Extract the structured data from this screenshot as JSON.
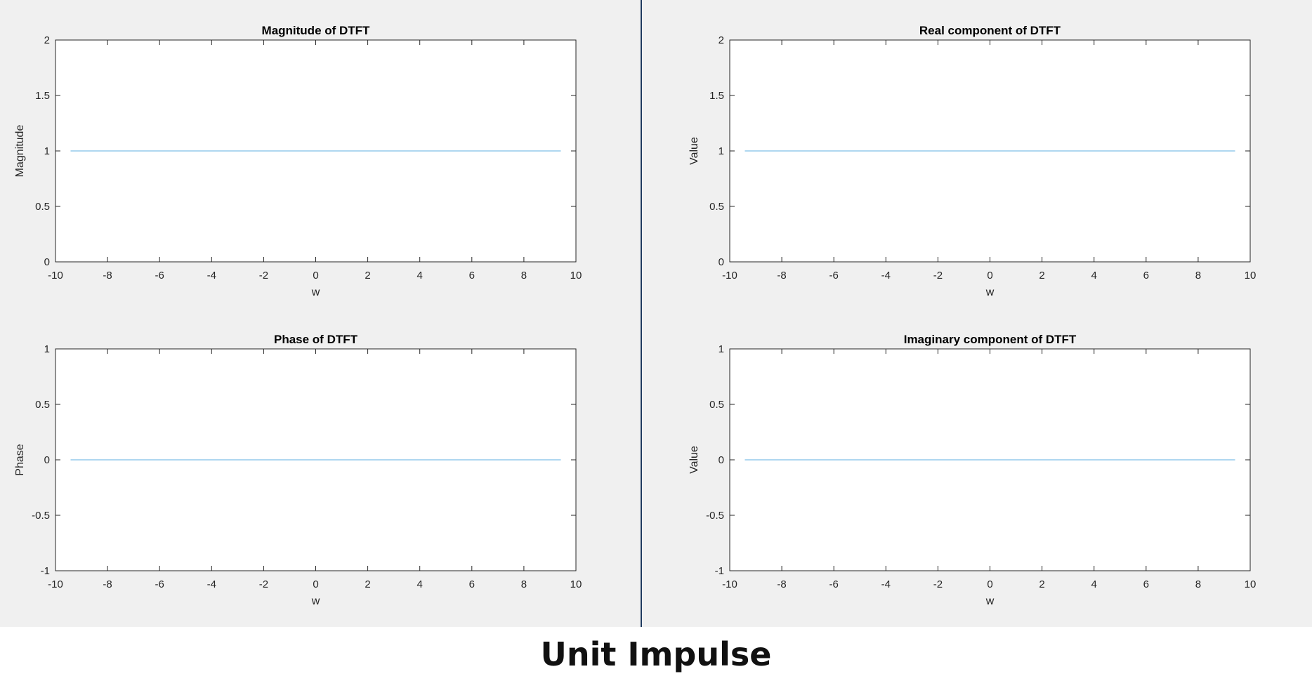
{
  "caption": "Unit Impulse",
  "colors": {
    "line": "#7fbfe8",
    "axes": "#262626",
    "background": "#f0f0f0",
    "divider": "#1f3a5f"
  },
  "chart_data": [
    {
      "type": "line",
      "title": "Magnitude of DTFT",
      "xlabel": "w",
      "ylabel": "Magnitude",
      "xlim": [
        -10,
        10
      ],
      "ylim": [
        0,
        2
      ],
      "xticks": [
        -10,
        -8,
        -6,
        -4,
        -2,
        0,
        2,
        4,
        6,
        8,
        10
      ],
      "xtick_labels": [
        "-10",
        "-8",
        "-6",
        "-4",
        "-2",
        "0",
        "2",
        "4",
        "6",
        "8",
        "10"
      ],
      "yticks": [
        0,
        0.5,
        1,
        1.5,
        2
      ],
      "ytick_labels": [
        "0",
        "0.5",
        "1",
        "1.5",
        "2"
      ],
      "grid": false,
      "series": [
        {
          "x": [
            -9.42,
            9.42
          ],
          "y": [
            1,
            1
          ]
        }
      ]
    },
    {
      "type": "line",
      "title": "Real component of DTFT",
      "xlabel": "w",
      "ylabel": "Value",
      "xlim": [
        -10,
        10
      ],
      "ylim": [
        0,
        2
      ],
      "xticks": [
        -10,
        -8,
        -6,
        -4,
        -2,
        0,
        2,
        4,
        6,
        8,
        10
      ],
      "xtick_labels": [
        "-10",
        "-8",
        "-6",
        "-4",
        "-2",
        "0",
        "2",
        "4",
        "6",
        "8",
        "10"
      ],
      "yticks": [
        0,
        0.5,
        1,
        1.5,
        2
      ],
      "ytick_labels": [
        "0",
        "0.5",
        "1",
        "1.5",
        "2"
      ],
      "grid": false,
      "series": [
        {
          "x": [
            -9.42,
            9.42
          ],
          "y": [
            1,
            1
          ]
        }
      ]
    },
    {
      "type": "line",
      "title": "Phase of DTFT",
      "xlabel": "w",
      "ylabel": "Phase",
      "xlim": [
        -10,
        10
      ],
      "ylim": [
        -1,
        1
      ],
      "xticks": [
        -10,
        -8,
        -6,
        -4,
        -2,
        0,
        2,
        4,
        6,
        8,
        10
      ],
      "xtick_labels": [
        "-10",
        "-8",
        "-6",
        "-4",
        "-2",
        "0",
        "2",
        "4",
        "6",
        "8",
        "10"
      ],
      "yticks": [
        -1,
        -0.5,
        0,
        0.5,
        1
      ],
      "ytick_labels": [
        "-1",
        "-0.5",
        "0",
        "0.5",
        "1"
      ],
      "grid": false,
      "series": [
        {
          "x": [
            -9.42,
            9.42
          ],
          "y": [
            0,
            0
          ]
        }
      ]
    },
    {
      "type": "line",
      "title": "Imaginary component of DTFT",
      "xlabel": "w",
      "ylabel": "Value",
      "xlim": [
        -10,
        10
      ],
      "ylim": [
        -1,
        1
      ],
      "xticks": [
        -10,
        -8,
        -6,
        -4,
        -2,
        0,
        2,
        4,
        6,
        8,
        10
      ],
      "xtick_labels": [
        "-10",
        "-8",
        "-6",
        "-4",
        "-2",
        "0",
        "2",
        "4",
        "6",
        "8",
        "10"
      ],
      "yticks": [
        -1,
        -0.5,
        0,
        0.5,
        1
      ],
      "ytick_labels": [
        "-1",
        "-0.5",
        "0",
        "0.5",
        "1"
      ],
      "grid": false,
      "series": [
        {
          "x": [
            -9.42,
            9.42
          ],
          "y": [
            0,
            0
          ]
        }
      ]
    }
  ]
}
